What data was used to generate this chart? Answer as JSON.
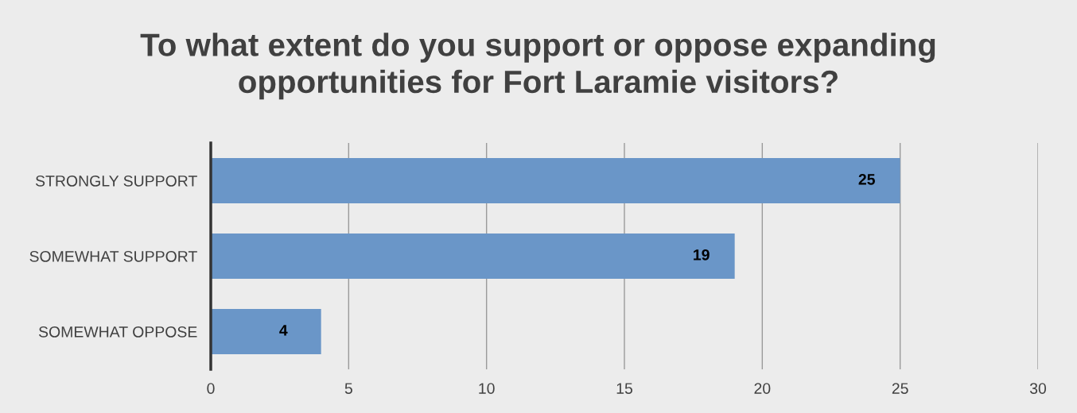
{
  "chart_data": {
    "type": "bar",
    "orientation": "horizontal",
    "title": "To what extent do you support or oppose expanding\nopportunities for Fort Laramie visitors?",
    "categories": [
      "STRONGLY SUPPORT",
      "SOMEWHAT SUPPORT",
      "SOMEWHAT OPPOSE"
    ],
    "values": [
      25,
      19,
      4
    ],
    "color": "#6a96c8",
    "xlim": [
      0,
      30
    ],
    "xticks": [
      0,
      5,
      10,
      15,
      20,
      25,
      30
    ],
    "grid": "x",
    "data_labels": true
  }
}
